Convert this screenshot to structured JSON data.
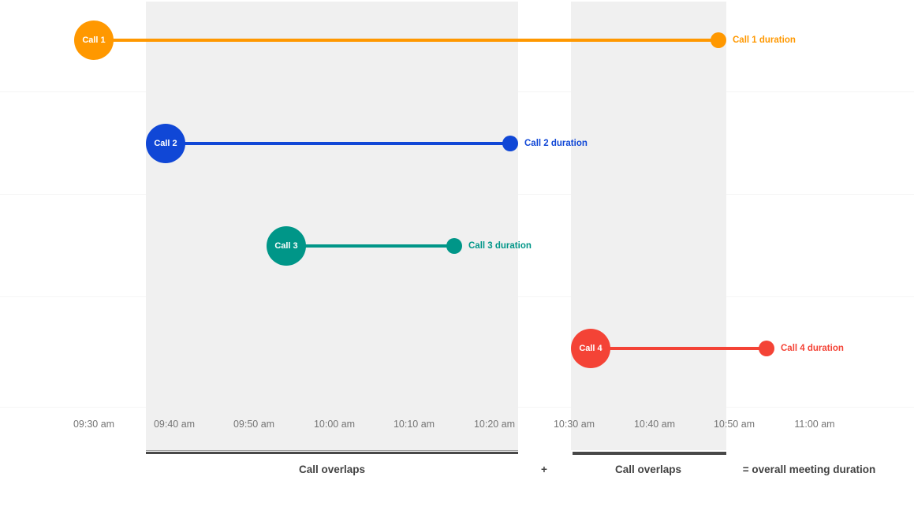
{
  "chart_data": {
    "type": "timeline",
    "x_axis": {
      "ticks": [
        "09:30 am",
        "09:40 am",
        "09:50 am",
        "10:00 am",
        "10:10 am",
        "10:20 am",
        "10:30 am",
        "10:40 am",
        "10:50 am",
        "11:00 am"
      ],
      "interval_minutes": 10
    },
    "calls": [
      {
        "name": "Call 1",
        "duration_label": "Call 1 duration",
        "color": "#FF9800",
        "start": "09:30 am",
        "end": "10:48 am"
      },
      {
        "name": "Call 2",
        "duration_label": "Call 2 duration",
        "color": "#1047D6",
        "start": "09:39 am",
        "end": "10:22 am"
      },
      {
        "name": "Call 3",
        "duration_label": "Call 3 duration",
        "color": "#009688",
        "start": "09:54 am",
        "end": "10:15 am"
      },
      {
        "name": "Call 4",
        "duration_label": "Call 4 duration",
        "color": "#F44336",
        "start": "10:32 am",
        "end": "10:54 am"
      }
    ],
    "overlaps": [
      {
        "label": "Call overlaps",
        "from_call": "Call 2",
        "to_call": "Call 2"
      },
      {
        "label": "Call overlaps",
        "from_call": "Call 4",
        "to_call": "Call 1"
      }
    ],
    "footer": {
      "plus": "+",
      "result": "= overall meeting duration"
    },
    "colors": {
      "band": "#F0F0F0",
      "gridline": "#F5F5F5",
      "tick_text": "#757575",
      "annotation_text": "#424242",
      "underline_light": "#9E9E9E",
      "underline_dark": "#484848"
    }
  }
}
